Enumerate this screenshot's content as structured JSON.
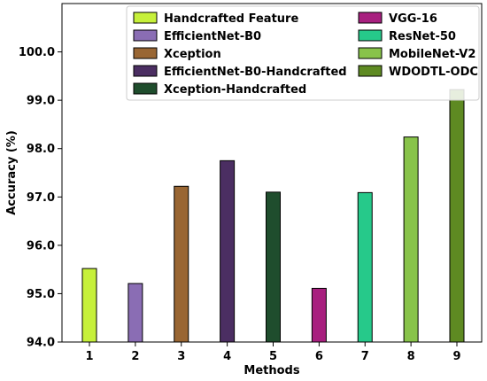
{
  "chart_data": {
    "type": "bar",
    "title": "",
    "xlabel": "Methods",
    "ylabel": "Accuracy (%)",
    "categories": [
      "1",
      "2",
      "3",
      "4",
      "5",
      "6",
      "7",
      "8",
      "9"
    ],
    "series": [
      {
        "name": "Handcrafted Feature",
        "category": "1",
        "value": 95.52,
        "color": "#C6F03A"
      },
      {
        "name": "EfficientNet-B0",
        "category": "2",
        "value": 95.21,
        "color": "#8A6DB4"
      },
      {
        "name": "Xception",
        "category": "3",
        "value": 97.22,
        "color": "#996633"
      },
      {
        "name": "EfficientNet-B0-Handcrafted",
        "category": "4",
        "value": 97.75,
        "color": "#4B2E62"
      },
      {
        "name": "Xception-Handcrafted",
        "category": "5",
        "value": 97.1,
        "color": "#1F4D2D"
      },
      {
        "name": "VGG-16",
        "category": "6",
        "value": 95.11,
        "color": "#A8207F"
      },
      {
        "name": "ResNet-50",
        "category": "7",
        "value": 97.09,
        "color": "#26C98A"
      },
      {
        "name": "MobileNet-V2",
        "category": "8",
        "value": 98.24,
        "color": "#88C34A"
      },
      {
        "name": "WDODTL-ODC",
        "category": "9",
        "value": 99.22,
        "color": "#5E8A22"
      }
    ],
    "ylim": [
      94.0,
      101.0
    ],
    "yticks": [
      "94.0",
      "95.0",
      "96.0",
      "97.0",
      "98.0",
      "99.0",
      "100.0"
    ],
    "grid": false,
    "legend_position": "top",
    "legend_columns": 2
  }
}
